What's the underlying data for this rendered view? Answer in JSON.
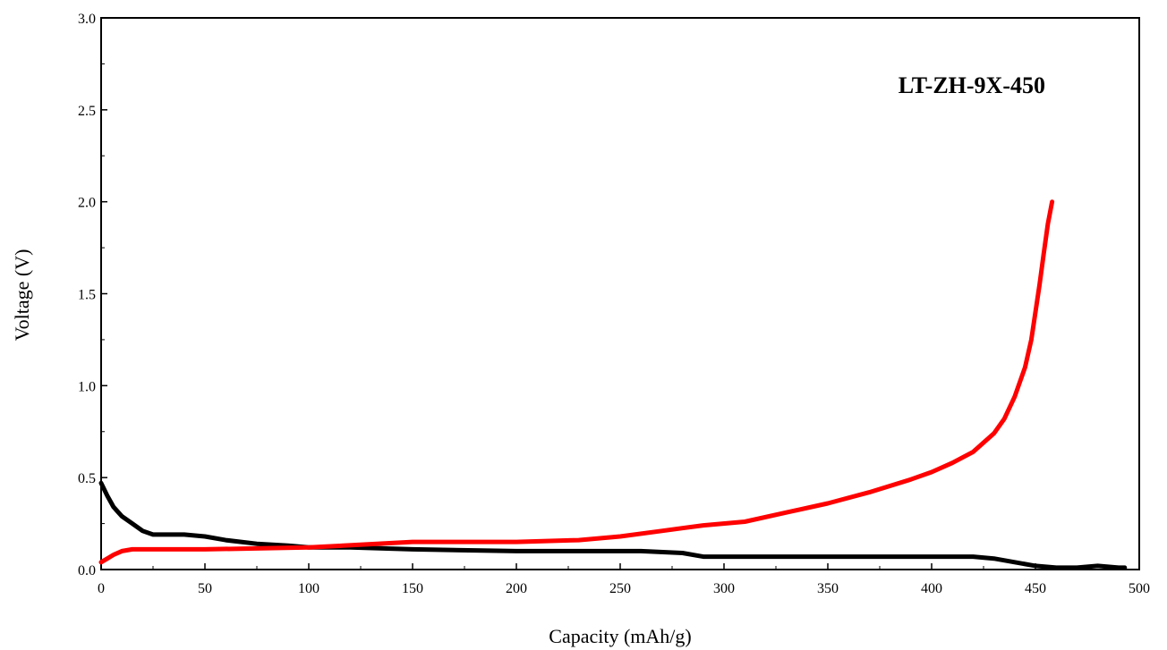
{
  "chart_data": {
    "type": "line",
    "xlabel": "Capacity (mAh/g)",
    "ylabel": "Voltage (V)",
    "xlim": [
      0,
      500
    ],
    "ylim": [
      0,
      3.0
    ],
    "xticks": [
      0,
      50,
      100,
      150,
      200,
      250,
      300,
      350,
      400,
      450,
      500
    ],
    "xtick_labels": [
      "0",
      "50",
      "100",
      "150",
      "200",
      "250",
      "300",
      "350",
      "400",
      "450",
      "500"
    ],
    "yticks": [
      0,
      0.5,
      1.0,
      1.5,
      2.0,
      2.5,
      3.0
    ],
    "ytick_labels": [
      "0.0",
      "0.5",
      "1.0",
      "1.5",
      "2.0",
      "2.5",
      "3.0"
    ],
    "grid": false,
    "legend": "none",
    "annotations": [
      {
        "text": "LT-ZH-9X-450",
        "location": "top-right"
      }
    ],
    "series": [
      {
        "color": "#000000",
        "x": [
          0,
          3,
          6,
          10,
          15,
          20,
          25,
          30,
          40,
          50,
          60,
          75,
          90,
          100,
          120,
          150,
          200,
          250,
          260,
          280,
          290,
          300,
          350,
          400,
          420,
          430,
          440,
          450,
          460,
          470,
          480,
          490,
          493
        ],
        "y": [
          0.47,
          0.4,
          0.34,
          0.29,
          0.25,
          0.21,
          0.19,
          0.19,
          0.19,
          0.18,
          0.16,
          0.14,
          0.13,
          0.12,
          0.12,
          0.11,
          0.1,
          0.1,
          0.1,
          0.09,
          0.07,
          0.07,
          0.07,
          0.07,
          0.07,
          0.06,
          0.04,
          0.02,
          0.01,
          0.01,
          0.02,
          0.01,
          0.01
        ]
      },
      {
        "color": "#ff0000",
        "x": [
          0,
          3,
          6,
          10,
          15,
          20,
          30,
          50,
          100,
          150,
          200,
          230,
          250,
          270,
          290,
          310,
          330,
          350,
          370,
          390,
          400,
          410,
          420,
          430,
          435,
          440,
          445,
          448,
          450,
          452,
          454,
          456,
          458
        ],
        "y": [
          0.04,
          0.06,
          0.08,
          0.1,
          0.11,
          0.11,
          0.11,
          0.11,
          0.12,
          0.15,
          0.15,
          0.16,
          0.18,
          0.21,
          0.24,
          0.26,
          0.31,
          0.36,
          0.42,
          0.49,
          0.53,
          0.58,
          0.64,
          0.74,
          0.82,
          0.94,
          1.1,
          1.25,
          1.4,
          1.55,
          1.72,
          1.88,
          2.0
        ]
      }
    ]
  }
}
